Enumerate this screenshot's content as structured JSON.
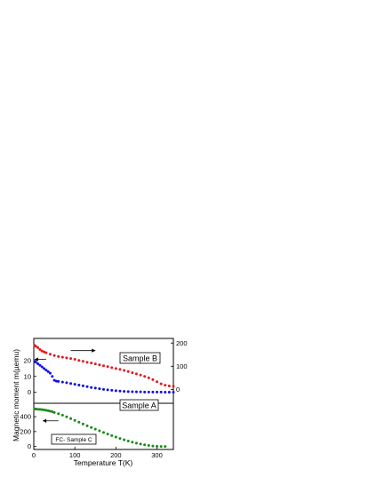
{
  "chart_data": {
    "type": "scatter",
    "xlabel": "Temperature T(K)",
    "ylabel": "Magnetic moment m(µemu)",
    "xlim": [
      0,
      340
    ],
    "x_ticks": [
      0,
      100,
      200,
      300
    ],
    "panels": {
      "upper": {
        "left_axis": {
          "range": [
            -7,
            34
          ],
          "ticks": [
            0,
            10,
            20
          ]
        },
        "right_axis": {
          "range": [
            -60,
            220
          ],
          "ticks": [
            0,
            100,
            200
          ]
        }
      },
      "lower": {
        "left_axis": {
          "range": [
            -40,
            580
          ],
          "ticks": [
            0,
            200,
            400
          ]
        }
      }
    },
    "series": [
      {
        "name": "Sample B",
        "panel": "upper",
        "axis": "right",
        "color": "#e41a1c",
        "x": [
          2,
          5,
          10,
          15,
          20,
          25,
          30,
          40,
          50,
          60,
          70,
          80,
          90,
          100,
          110,
          120,
          130,
          140,
          150,
          160,
          170,
          180,
          190,
          200,
          210,
          220,
          230,
          240,
          250,
          260,
          270,
          280,
          290,
          300,
          310,
          320,
          330,
          340
        ],
        "y": [
          190,
          186,
          180,
          172,
          166,
          162,
          158,
          152,
          146,
          142,
          139,
          136,
          133,
          130,
          125,
          121,
          117,
          114,
          110,
          106,
          102,
          98,
          94,
          90,
          86,
          82,
          77,
          72,
          67,
          62,
          56,
          50,
          42,
          33,
          24,
          18,
          15,
          14
        ]
      },
      {
        "name": "Sample A",
        "panel": "upper",
        "axis": "left",
        "color": "#1010e0",
        "x": [
          2,
          5,
          10,
          15,
          20,
          25,
          30,
          35,
          40,
          45,
          50,
          55,
          60,
          70,
          80,
          90,
          100,
          110,
          120,
          130,
          140,
          150,
          160,
          170,
          180,
          190,
          200,
          210,
          220,
          230,
          240,
          250,
          260,
          270,
          280,
          290,
          300,
          310,
          320,
          330,
          340
        ],
        "y": [
          19.5,
          19,
          18,
          17,
          16,
          15,
          14,
          13,
          12,
          10,
          7.5,
          7,
          6.8,
          6.4,
          6,
          5.5,
          5,
          4.5,
          4,
          3.5,
          3,
          2.6,
          2.2,
          1.8,
          1.5,
          1.2,
          0.9,
          0.7,
          0.5,
          0.4,
          0.3,
          0.2,
          0.2,
          0.1,
          0.1,
          0.1,
          0.1,
          0.1,
          0,
          0,
          0
        ]
      },
      {
        "name": "FC- Sample C",
        "panel": "lower",
        "axis": "left",
        "color": "#1a8a1a",
        "x": [
          2,
          5,
          10,
          15,
          20,
          25,
          30,
          35,
          40,
          45,
          50,
          60,
          70,
          80,
          90,
          100,
          110,
          120,
          130,
          140,
          150,
          160,
          170,
          180,
          190,
          200,
          210,
          220,
          230,
          240,
          250,
          260,
          270,
          280,
          290,
          300,
          310,
          320
        ],
        "y": [
          505,
          502,
          500,
          498,
          495,
          490,
          486,
          480,
          474,
          466,
          457,
          440,
          420,
          398,
          375,
          350,
          326,
          302,
          278,
          255,
          232,
          210,
          188,
          167,
          146,
          127,
          108,
          90,
          74,
          59,
          45,
          33,
          22,
          13,
          6,
          2,
          0,
          0
        ]
      }
    ],
    "annotations": [
      {
        "text": "Sample B",
        "boxed": true,
        "target": "Sample B"
      },
      {
        "text": "Sample A",
        "boxed": true,
        "target": "Sample A"
      },
      {
        "text": "FC- Sample C",
        "boxed": true,
        "target": "FC- Sample C"
      }
    ],
    "arrows": [
      {
        "series": "Sample B",
        "direction": "right",
        "x_from": 90,
        "x_to": 150
      },
      {
        "series": "Sample A",
        "direction": "left",
        "x_from": 30,
        "x_to": 2
      },
      {
        "series": "FC- Sample C",
        "direction": "left",
        "x_from": 60,
        "x_to": 22
      }
    ]
  }
}
